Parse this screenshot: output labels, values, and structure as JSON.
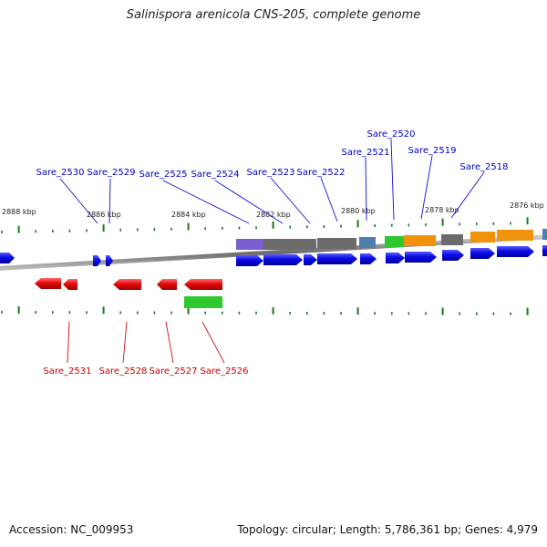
{
  "title": "Salinispora arenicola CNS-205, complete genome",
  "accession_text": "Accession: NC_009953",
  "topology_text": "Topology: circular; Length: 5,786,361 bp; Genes: 4,979",
  "colors": {
    "forward_gene": "#0a0ae6",
    "reverse_gene": "#e60a0a",
    "gene_label_forward": "#0000c8",
    "gene_label_reverse": "#c80000",
    "tick": "#1a7a1a",
    "backbone": "#777777",
    "band_purple": "#7a5fd0",
    "band_gray": "#6b6b6b",
    "band_steel": "#4f7fb0",
    "band_green": "#2ec82e",
    "band_orange": "#f0920a"
  },
  "scale_labels": [
    "2888 kbp",
    "2886 kbp",
    "2884 kbp",
    "2882 kbp",
    "2880 kbp",
    "2878 kbp",
    "2876 kbp"
  ],
  "forward_genes": [
    "Sare_2530",
    "Sare_2529",
    "Sare_2525",
    "Sare_2524",
    "Sare_2523",
    "Sare_2522",
    "Sare_2521",
    "Sare_2520",
    "Sare_2519",
    "Sare_2518"
  ],
  "reverse_genes": [
    "Sare_2531",
    "Sare_2528",
    "Sare_2527",
    "Sare_2526"
  ]
}
